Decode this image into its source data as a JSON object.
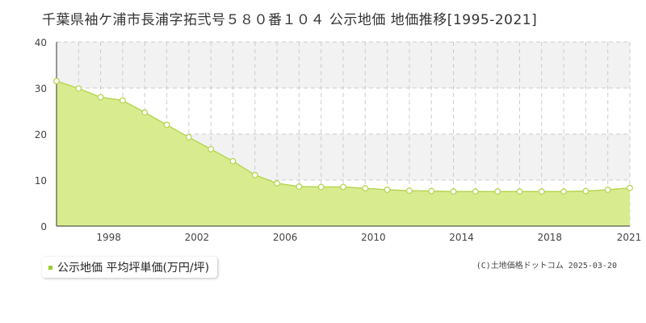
{
  "chart_data": {
    "type": "area",
    "title": "千葉県袖ケ浦市長浦字拓弐号５８０番１０４ 公示地価 地価推移[1995-2021]",
    "xlabel": "",
    "ylabel": "",
    "x": [
      1995,
      1996,
      1997,
      1998,
      1999,
      2000,
      2001,
      2002,
      2003,
      2004,
      2005,
      2006,
      2007,
      2008,
      2009,
      2010,
      2011,
      2012,
      2013,
      2014,
      2015,
      2016,
      2017,
      2018,
      2019,
      2020,
      2021
    ],
    "series": [
      {
        "name": "公示地価 平均坪単価(万円/坪)",
        "values": [
          31.5,
          29.9,
          28.0,
          27.3,
          24.7,
          22.0,
          19.3,
          16.7,
          14.1,
          11.1,
          9.3,
          8.6,
          8.5,
          8.5,
          8.2,
          7.9,
          7.7,
          7.6,
          7.5,
          7.5,
          7.5,
          7.5,
          7.5,
          7.5,
          7.6,
          7.9,
          8.3
        ]
      }
    ],
    "xlim": [
      1995,
      2021
    ],
    "ylim": [
      0,
      40
    ],
    "yticks": [
      "0",
      "10",
      "20",
      "30",
      "40"
    ],
    "xticks": [
      "1998",
      "2002",
      "2006",
      "2010",
      "2014",
      "2018",
      "2021"
    ],
    "grid": true,
    "legend": "bottom-left",
    "colors": {
      "fill": "#d8ec8f",
      "line": "#b7d653",
      "marker_fill": "#ffffff",
      "band": "#f2f2f2",
      "grid": "#cccccc",
      "legend_swatch": "#9acd32"
    }
  },
  "legend": {
    "label": "公示地価 平均坪単価(万円/坪)"
  },
  "credit": "(C)土地価格ドットコム 2025-03-20"
}
